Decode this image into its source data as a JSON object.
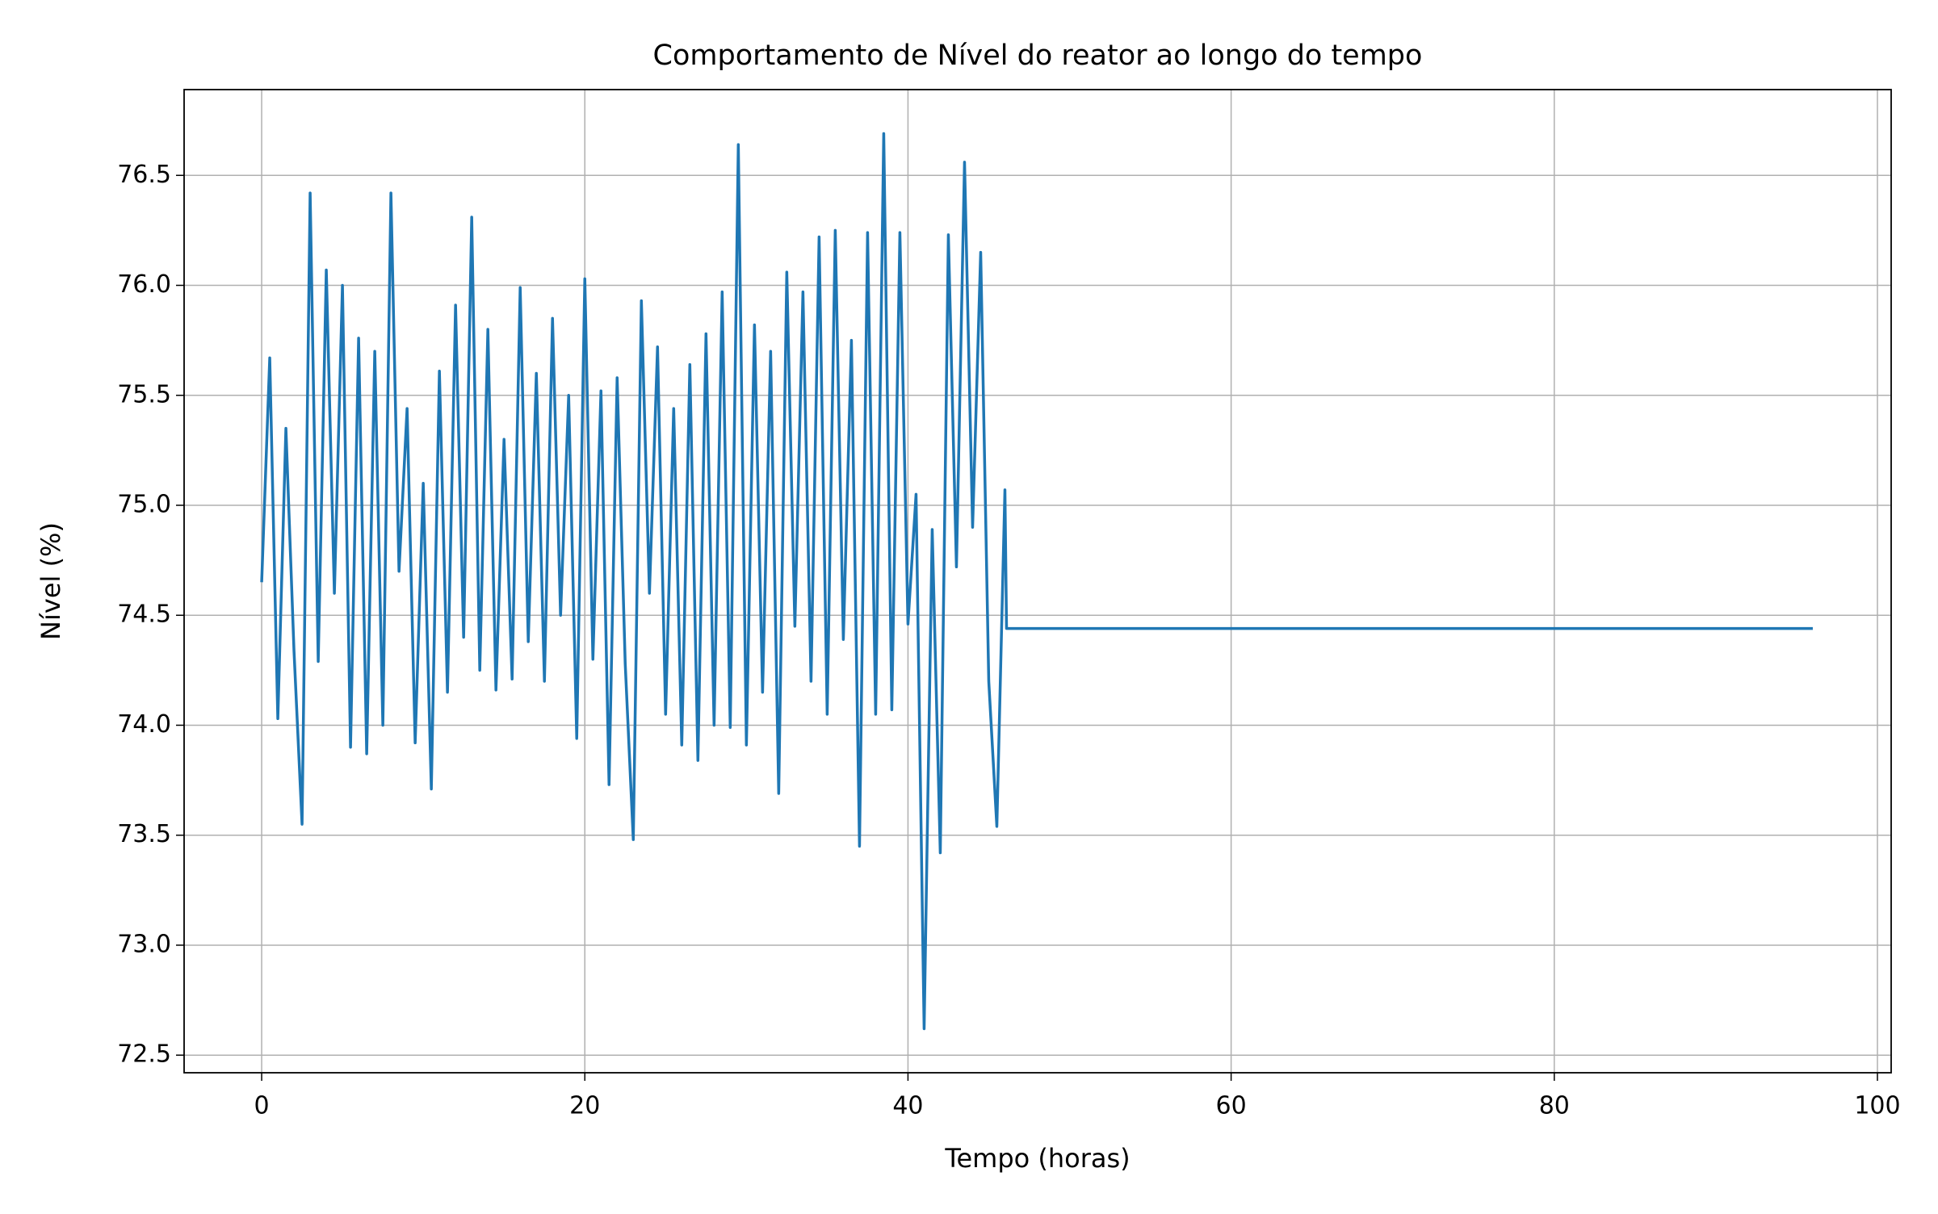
{
  "chart_data": {
    "type": "line",
    "title": "Comportamento de Nível do reator ao longo do tempo",
    "x_label": "Tempo (horas)",
    "y_label": "Nível (%)",
    "color": "#1f77b4",
    "grid": true,
    "x": [
      0,
      0.5,
      1,
      1.5,
      2,
      2.5,
      3,
      3.5,
      4,
      4.5,
      5,
      5.5,
      6,
      6.5,
      7,
      7.5,
      8,
      8.5,
      9,
      9.5,
      10,
      10.5,
      11,
      11.5,
      12,
      12.5,
      13,
      13.5,
      14,
      14.5,
      15,
      15.5,
      16,
      16.5,
      17,
      17.5,
      18,
      18.5,
      19,
      19.5,
      20,
      20.5,
      21,
      21.5,
      22,
      22.5,
      23,
      23.5,
      24,
      24.5,
      25,
      25.5,
      26,
      26.5,
      27,
      27.5,
      28,
      28.5,
      29,
      29.5,
      30,
      30.5,
      31,
      31.5,
      32,
      32.5,
      33,
      33.5,
      34,
      34.5,
      35,
      35.5,
      36,
      36.5,
      37,
      37.5,
      38,
      38.5,
      39,
      39.5,
      40,
      40.5,
      41,
      41.5,
      42,
      42.5,
      43,
      43.5,
      44,
      44.5,
      45,
      45.5,
      46,
      46.1,
      96
    ],
    "values": [
      74.65,
      75.67,
      74.03,
      75.35,
      74.34,
      73.55,
      76.42,
      74.29,
      76.07,
      74.6,
      76.0,
      73.9,
      75.76,
      73.87,
      75.7,
      74.0,
      76.42,
      74.7,
      75.44,
      73.92,
      75.1,
      73.71,
      75.61,
      74.15,
      75.91,
      74.4,
      76.31,
      74.25,
      75.8,
      74.16,
      75.3,
      74.21,
      75.99,
      74.38,
      75.6,
      74.2,
      75.85,
      74.5,
      75.5,
      73.94,
      76.03,
      74.3,
      75.52,
      73.73,
      75.58,
      74.28,
      73.48,
      75.93,
      74.6,
      75.72,
      74.05,
      75.44,
      73.91,
      75.64,
      73.84,
      75.78,
      74.0,
      75.97,
      73.99,
      76.64,
      73.91,
      75.82,
      74.15,
      75.7,
      73.69,
      76.06,
      74.45,
      75.97,
      74.2,
      76.22,
      74.05,
      76.25,
      74.39,
      75.75,
      73.45,
      76.24,
      74.05,
      76.69,
      74.07,
      76.24,
      74.46,
      75.05,
      72.62,
      74.89,
      73.42,
      76.23,
      74.72,
      76.56,
      74.9,
      76.15,
      74.2,
      73.54,
      75.07,
      74.44,
      74.44
    ],
    "xlim": [
      -4.8,
      100.85
    ],
    "ylim": [
      72.42,
      76.89
    ],
    "xticks": [
      0,
      20,
      40,
      60,
      80,
      100
    ],
    "yticks": [
      72.5,
      {
        "value": 73,
        "label": "73.0"
      },
      73.5,
      {
        "value": 74,
        "label": "74.0"
      },
      74.5,
      {
        "value": 75,
        "label": "75.0"
      },
      75.5,
      {
        "value": 76,
        "label": "76.0"
      },
      76.5
    ]
  }
}
